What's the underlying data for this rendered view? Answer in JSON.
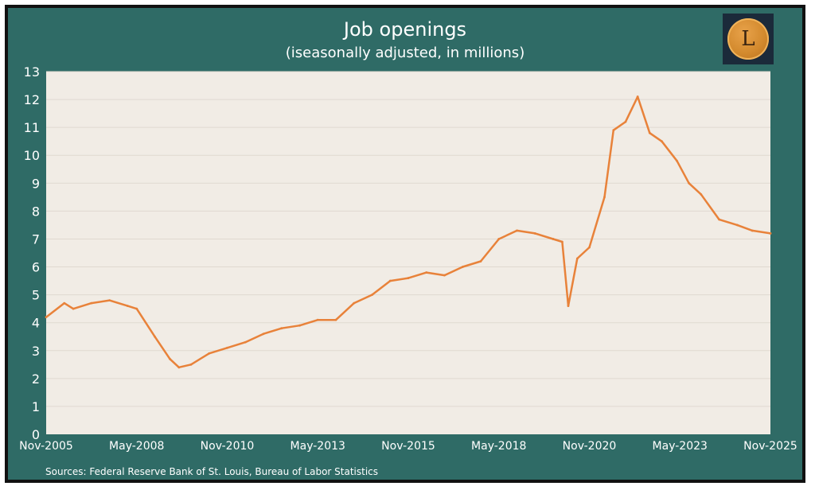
{
  "header": {
    "title": "Job openings",
    "subtitle": "(iseasonally adjusted, in millions)",
    "logo_letter": "L"
  },
  "footer": {
    "source": "Sources: Federal Reserve Bank of St. Louis, Bureau of Labor Statistics"
  },
  "colors": {
    "background": "#2f6b66",
    "plot_area": "#f1ece5",
    "line": "#e8823a",
    "text": "#ffffff",
    "gridline": "#e0d9d0"
  },
  "chart_data": {
    "type": "line",
    "title": "Job openings",
    "subtitle": "(iseasonally adjusted, in millions)",
    "xlabel": "",
    "ylabel": "",
    "ylim": [
      0,
      13
    ],
    "grid": true,
    "x_tick_labels": [
      "Nov-2005",
      "May-2008",
      "Nov-2010",
      "May-2013",
      "Nov-2015",
      "May-2018",
      "Nov-2020",
      "May-2023",
      "Nov-2025"
    ],
    "y_tick_labels": [
      "0",
      "1",
      "2",
      "3",
      "4",
      "5",
      "6",
      "7",
      "8",
      "9",
      "10",
      "11",
      "12",
      "13"
    ],
    "series": [
      {
        "x": [
          "2005-11",
          "2006-05",
          "2006-08",
          "2007-02",
          "2007-08",
          "2008-02",
          "2008-05",
          "2008-11",
          "2009-04",
          "2009-07",
          "2009-11",
          "2010-05",
          "2010-11",
          "2011-05",
          "2011-11",
          "2012-05",
          "2012-11",
          "2013-05",
          "2013-11",
          "2014-05",
          "2014-11",
          "2015-05",
          "2015-11",
          "2016-05",
          "2016-11",
          "2017-05",
          "2017-11",
          "2018-05",
          "2018-11",
          "2019-05",
          "2019-11",
          "2020-02",
          "2020-04",
          "2020-07",
          "2020-11",
          "2021-04",
          "2021-07",
          "2021-11",
          "2022-03",
          "2022-07",
          "2022-11",
          "2023-04",
          "2023-08",
          "2023-12",
          "2024-06",
          "2024-12",
          "2025-05",
          "2025-11"
        ],
        "values": [
          4.2,
          4.7,
          4.5,
          4.7,
          4.8,
          4.6,
          4.5,
          3.5,
          2.7,
          2.4,
          2.5,
          2.9,
          3.1,
          3.3,
          3.6,
          3.8,
          3.9,
          4.1,
          4.1,
          4.7,
          5.0,
          5.5,
          5.6,
          5.8,
          5.7,
          6.0,
          6.2,
          7.0,
          7.3,
          7.2,
          7.0,
          6.9,
          4.6,
          6.3,
          6.7,
          8.5,
          10.9,
          11.2,
          12.1,
          10.8,
          10.5,
          9.8,
          9.0,
          8.6,
          7.7,
          7.5,
          7.3,
          7.2
        ]
      }
    ]
  }
}
